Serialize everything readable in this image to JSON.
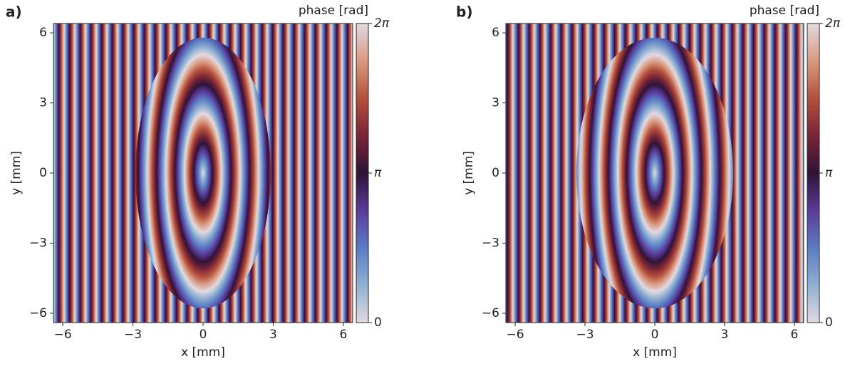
{
  "chart_data": [
    {
      "type": "heatmap",
      "panel_label": "a)",
      "xlabel": "x [mm]",
      "ylabel": "y [mm]",
      "xlim": [
        -6.4,
        6.4
      ],
      "ylim": [
        -6.4,
        6.4
      ],
      "xticks": [
        {
          "value": -6,
          "label": "−6"
        },
        {
          "value": -3,
          "label": "−3"
        },
        0,
        3,
        6
      ],
      "yticks": [
        {
          "value": -6,
          "label": "−6"
        },
        {
          "value": -3,
          "label": "−3"
        },
        0,
        3,
        6
      ],
      "colormap": "twilight_shifted",
      "colorbar": {
        "label": "phase [rad]",
        "lim": [
          0,
          6.2832
        ],
        "ticks": [
          0,
          {
            "value": 3.1416,
            "label": "π"
          },
          {
            "value": 6.2832,
            "label": "2π"
          }
        ]
      }
    },
    {
      "type": "heatmap",
      "panel_label": "b)",
      "xlabel": "x [mm]",
      "ylabel": "y [mm]",
      "xlim": [
        -6.4,
        6.4
      ],
      "ylim": [
        -6.4,
        6.4
      ],
      "xticks": [
        {
          "value": -6,
          "label": "−6"
        },
        {
          "value": -3,
          "label": "−3"
        },
        0,
        3,
        6
      ],
      "yticks": [
        {
          "value": -6,
          "label": "−6"
        },
        {
          "value": -3,
          "label": "−3"
        },
        0,
        3,
        6
      ],
      "colormap": "twilight_shifted",
      "colorbar": {
        "label": "phase [rad]",
        "lim": [
          0,
          6.2832
        ],
        "ticks": [
          0,
          {
            "value": 3.1416,
            "label": "π"
          },
          {
            "value": 6.2832,
            "label": "2π"
          }
        ]
      }
    }
  ]
}
